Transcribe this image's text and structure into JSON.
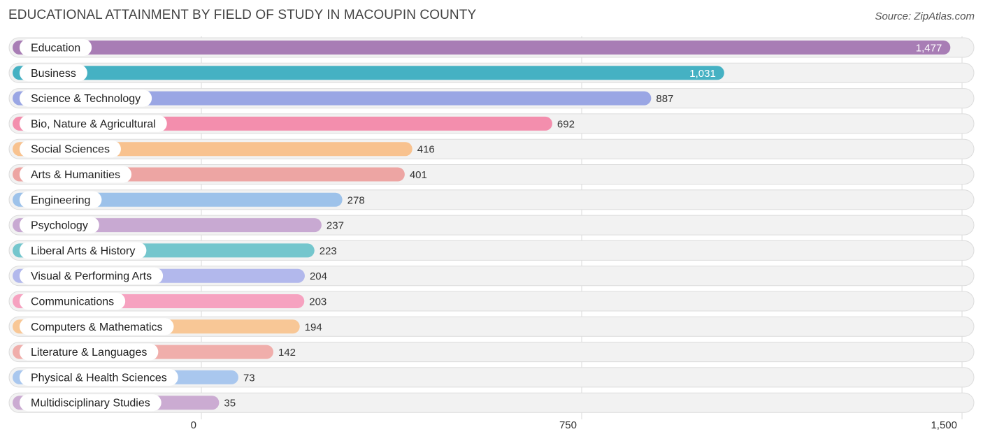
{
  "title": "EDUCATIONAL ATTAINMENT BY FIELD OF STUDY IN MACOUPIN COUNTY",
  "source": "Source: ZipAtlas.com",
  "chart_data": {
    "type": "bar",
    "orientation": "horizontal",
    "categories": [
      "Education",
      "Business",
      "Science & Technology",
      "Bio, Nature & Agricultural",
      "Social Sciences",
      "Arts & Humanities",
      "Engineering",
      "Psychology",
      "Liberal Arts & History",
      "Visual & Performing Arts",
      "Communications",
      "Computers & Mathematics",
      "Literature & Languages",
      "Physical & Health Sciences",
      "Multidisciplinary Studies"
    ],
    "values": [
      1477,
      1031,
      887,
      692,
      416,
      401,
      278,
      237,
      223,
      204,
      203,
      194,
      142,
      73,
      35
    ],
    "value_labels": [
      "1,477",
      "1,031",
      "887",
      "692",
      "416",
      "401",
      "278",
      "237",
      "223",
      "204",
      "203",
      "194",
      "142",
      "73",
      "35"
    ],
    "colors": [
      "#a87db5",
      "#45b1c3",
      "#9aa6e4",
      "#f38ead",
      "#f8c28f",
      "#eda5a3",
      "#9dc2ea",
      "#c8a9d2",
      "#74c6cd",
      "#b2b8ec",
      "#f6a2c0",
      "#f8c796",
      "#f0aeab",
      "#a9c7ee",
      "#cbabd2"
    ],
    "xlim": [
      0,
      1500
    ],
    "x_ticks": [
      0,
      750,
      1500
    ],
    "x_tick_labels": [
      "0",
      "750",
      "1,500"
    ],
    "grid": true
  }
}
